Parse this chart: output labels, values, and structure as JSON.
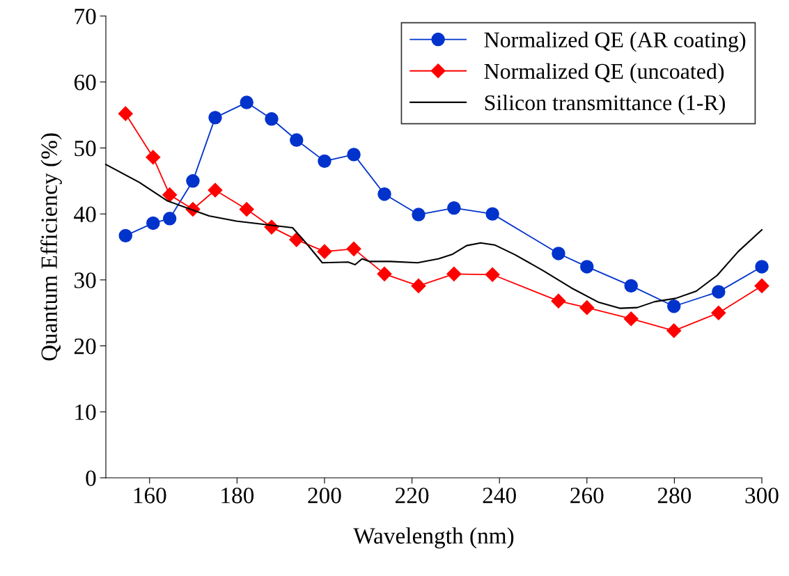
{
  "chart_data": {
    "type": "line",
    "xlabel": "Wavelength (nm)",
    "ylabel": "Quantum Efficiency (%)",
    "xlim": [
      150,
      300
    ],
    "xticks": [
      160,
      180,
      200,
      220,
      240,
      260,
      280,
      300
    ],
    "ylim": [
      0,
      70
    ],
    "yticks": [
      0,
      10,
      20,
      30,
      40,
      50,
      60,
      70
    ],
    "grid": false,
    "legend": "top right",
    "series": [
      {
        "name": "Normalized QE (AR coating)",
        "color": "#0033cc",
        "marker": "circle",
        "x": [
          154.5,
          160.8,
          164.6,
          169.9,
          175.0,
          182.2,
          187.9,
          193.6,
          200.0,
          206.7,
          213.7,
          221.5,
          229.6,
          238.4,
          253.5,
          260.0,
          270.1,
          279.9,
          290.1,
          300
        ],
        "values": [
          36.7,
          38.6,
          39.3,
          45.0,
          54.6,
          56.9,
          54.4,
          51.2,
          48.0,
          49.0,
          43.0,
          39.9,
          40.9,
          40.0,
          34.0,
          32.0,
          29.1,
          26.0,
          28.2,
          32.0
        ]
      },
      {
        "name": "Normalized QE (uncoated)",
        "color": "#ff0000",
        "marker": "diamond",
        "x": [
          154.5,
          160.8,
          164.6,
          169.9,
          175.0,
          182.2,
          187.9,
          193.6,
          200.0,
          206.7,
          213.7,
          221.5,
          229.6,
          238.4,
          253.5,
          260.0,
          270.1,
          279.9,
          290.1,
          300
        ],
        "values": [
          55.2,
          48.6,
          42.9,
          40.7,
          43.6,
          40.7,
          38.0,
          36.1,
          34.3,
          34.7,
          30.9,
          29.1,
          30.9,
          30.8,
          26.8,
          25.8,
          24.1,
          22.3,
          25.0,
          29.1
        ]
      },
      {
        "name": "Silicon transmittance (1-R)",
        "color": "#000000",
        "marker": "none",
        "x": [
          150,
          157.6,
          164,
          173.6,
          179.9,
          186.3,
          192.7,
          195.9,
          199.5,
          205.4,
          207,
          208.6,
          210.2,
          215,
          221.3,
          226.1,
          229.3,
          232.5,
          235.7,
          238.9,
          243.6,
          250,
          256.4,
          262.7,
          267.5,
          271.5,
          275.5,
          280.3,
          285,
          289.8,
          294.6,
          300
        ],
        "values": [
          47.5,
          44.8,
          42.0,
          39.7,
          38.9,
          38.4,
          37.9,
          35.5,
          32.6,
          32.7,
          32.3,
          33.2,
          32.8,
          32.8,
          32.6,
          33.2,
          33.9,
          35.2,
          35.6,
          35.3,
          33.8,
          31.4,
          28.8,
          26.6,
          25.7,
          25.8,
          26.7,
          27.2,
          28.3,
          30.7,
          34.3,
          37.6
        ]
      }
    ]
  }
}
